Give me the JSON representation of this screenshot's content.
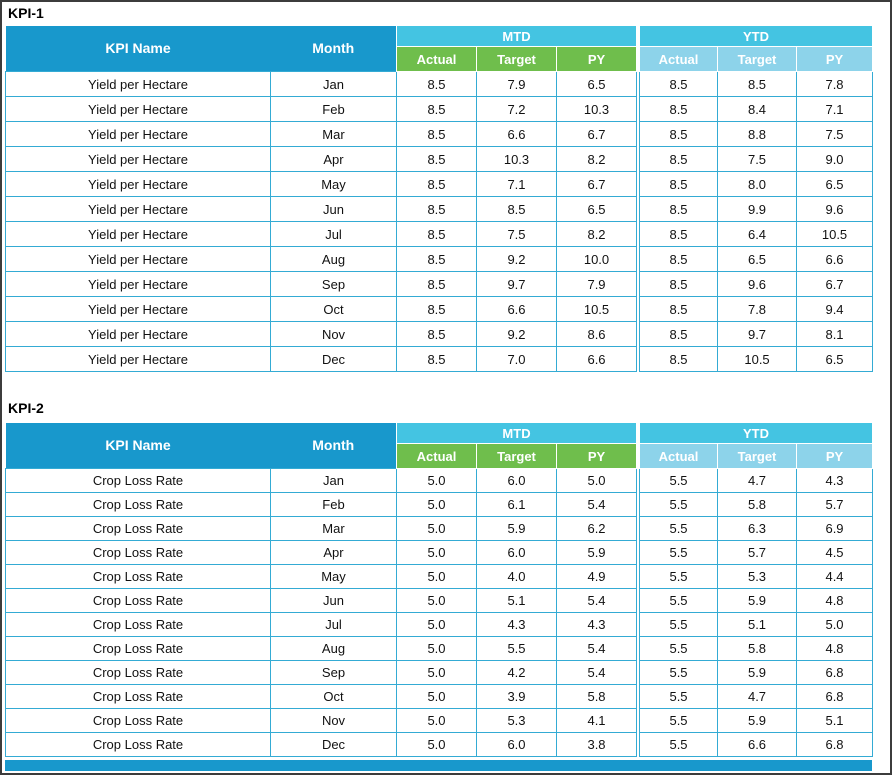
{
  "colors": {
    "header_blue": "#1898CC",
    "banner_cyan": "#44C4E2",
    "mtd_green": "#6FBE4C",
    "ytd_light_blue": "#8DD3EA",
    "cell_border": "#34ABD4"
  },
  "labels": {
    "kpi_name": "KPI Name",
    "month": "Month",
    "mtd": "MTD",
    "ytd": "YTD",
    "actual": "Actual",
    "target": "Target",
    "py": "PY"
  },
  "tables": [
    {
      "title": "KPI-1",
      "kpi": "Yield per Hectare",
      "rows": [
        {
          "month": "Jan",
          "mtd": [
            "8.5",
            "7.9",
            "6.5"
          ],
          "ytd": [
            "8.5",
            "8.5",
            "7.8"
          ]
        },
        {
          "month": "Feb",
          "mtd": [
            "8.5",
            "7.2",
            "10.3"
          ],
          "ytd": [
            "8.5",
            "8.4",
            "7.1"
          ]
        },
        {
          "month": "Mar",
          "mtd": [
            "8.5",
            "6.6",
            "6.7"
          ],
          "ytd": [
            "8.5",
            "8.8",
            "7.5"
          ]
        },
        {
          "month": "Apr",
          "mtd": [
            "8.5",
            "10.3",
            "8.2"
          ],
          "ytd": [
            "8.5",
            "7.5",
            "9.0"
          ]
        },
        {
          "month": "May",
          "mtd": [
            "8.5",
            "7.1",
            "6.7"
          ],
          "ytd": [
            "8.5",
            "8.0",
            "6.5"
          ]
        },
        {
          "month": "Jun",
          "mtd": [
            "8.5",
            "8.5",
            "6.5"
          ],
          "ytd": [
            "8.5",
            "9.9",
            "9.6"
          ]
        },
        {
          "month": "Jul",
          "mtd": [
            "8.5",
            "7.5",
            "8.2"
          ],
          "ytd": [
            "8.5",
            "6.4",
            "10.5"
          ]
        },
        {
          "month": "Aug",
          "mtd": [
            "8.5",
            "9.2",
            "10.0"
          ],
          "ytd": [
            "8.5",
            "6.5",
            "6.6"
          ]
        },
        {
          "month": "Sep",
          "mtd": [
            "8.5",
            "9.7",
            "7.9"
          ],
          "ytd": [
            "8.5",
            "9.6",
            "6.7"
          ]
        },
        {
          "month": "Oct",
          "mtd": [
            "8.5",
            "6.6",
            "10.5"
          ],
          "ytd": [
            "8.5",
            "7.8",
            "9.4"
          ]
        },
        {
          "month": "Nov",
          "mtd": [
            "8.5",
            "9.2",
            "8.6"
          ],
          "ytd": [
            "8.5",
            "9.7",
            "8.1"
          ]
        },
        {
          "month": "Dec",
          "mtd": [
            "8.5",
            "7.0",
            "6.6"
          ],
          "ytd": [
            "8.5",
            "10.5",
            "6.5"
          ]
        }
      ]
    },
    {
      "title": "KPI-2",
      "kpi": "Crop Loss Rate",
      "rows": [
        {
          "month": "Jan",
          "mtd": [
            "5.0",
            "6.0",
            "5.0"
          ],
          "ytd": [
            "5.5",
            "4.7",
            "4.3"
          ]
        },
        {
          "month": "Feb",
          "mtd": [
            "5.0",
            "6.1",
            "5.4"
          ],
          "ytd": [
            "5.5",
            "5.8",
            "5.7"
          ]
        },
        {
          "month": "Mar",
          "mtd": [
            "5.0",
            "5.9",
            "6.2"
          ],
          "ytd": [
            "5.5",
            "6.3",
            "6.9"
          ]
        },
        {
          "month": "Apr",
          "mtd": [
            "5.0",
            "6.0",
            "5.9"
          ],
          "ytd": [
            "5.5",
            "5.7",
            "4.5"
          ]
        },
        {
          "month": "May",
          "mtd": [
            "5.0",
            "4.0",
            "4.9"
          ],
          "ytd": [
            "5.5",
            "5.3",
            "4.4"
          ]
        },
        {
          "month": "Jun",
          "mtd": [
            "5.0",
            "5.1",
            "5.4"
          ],
          "ytd": [
            "5.5",
            "5.9",
            "4.8"
          ]
        },
        {
          "month": "Jul",
          "mtd": [
            "5.0",
            "4.3",
            "4.3"
          ],
          "ytd": [
            "5.5",
            "5.1",
            "5.0"
          ]
        },
        {
          "month": "Aug",
          "mtd": [
            "5.0",
            "5.5",
            "5.4"
          ],
          "ytd": [
            "5.5",
            "5.8",
            "4.8"
          ]
        },
        {
          "month": "Sep",
          "mtd": [
            "5.0",
            "4.2",
            "5.4"
          ],
          "ytd": [
            "5.5",
            "5.9",
            "6.8"
          ]
        },
        {
          "month": "Oct",
          "mtd": [
            "5.0",
            "3.9",
            "5.8"
          ],
          "ytd": [
            "5.5",
            "4.7",
            "6.8"
          ]
        },
        {
          "month": "Nov",
          "mtd": [
            "5.0",
            "5.3",
            "4.1"
          ],
          "ytd": [
            "5.5",
            "5.9",
            "5.1"
          ]
        },
        {
          "month": "Dec",
          "mtd": [
            "5.0",
            "6.0",
            "3.8"
          ],
          "ytd": [
            "5.5",
            "6.6",
            "6.8"
          ]
        }
      ]
    }
  ]
}
